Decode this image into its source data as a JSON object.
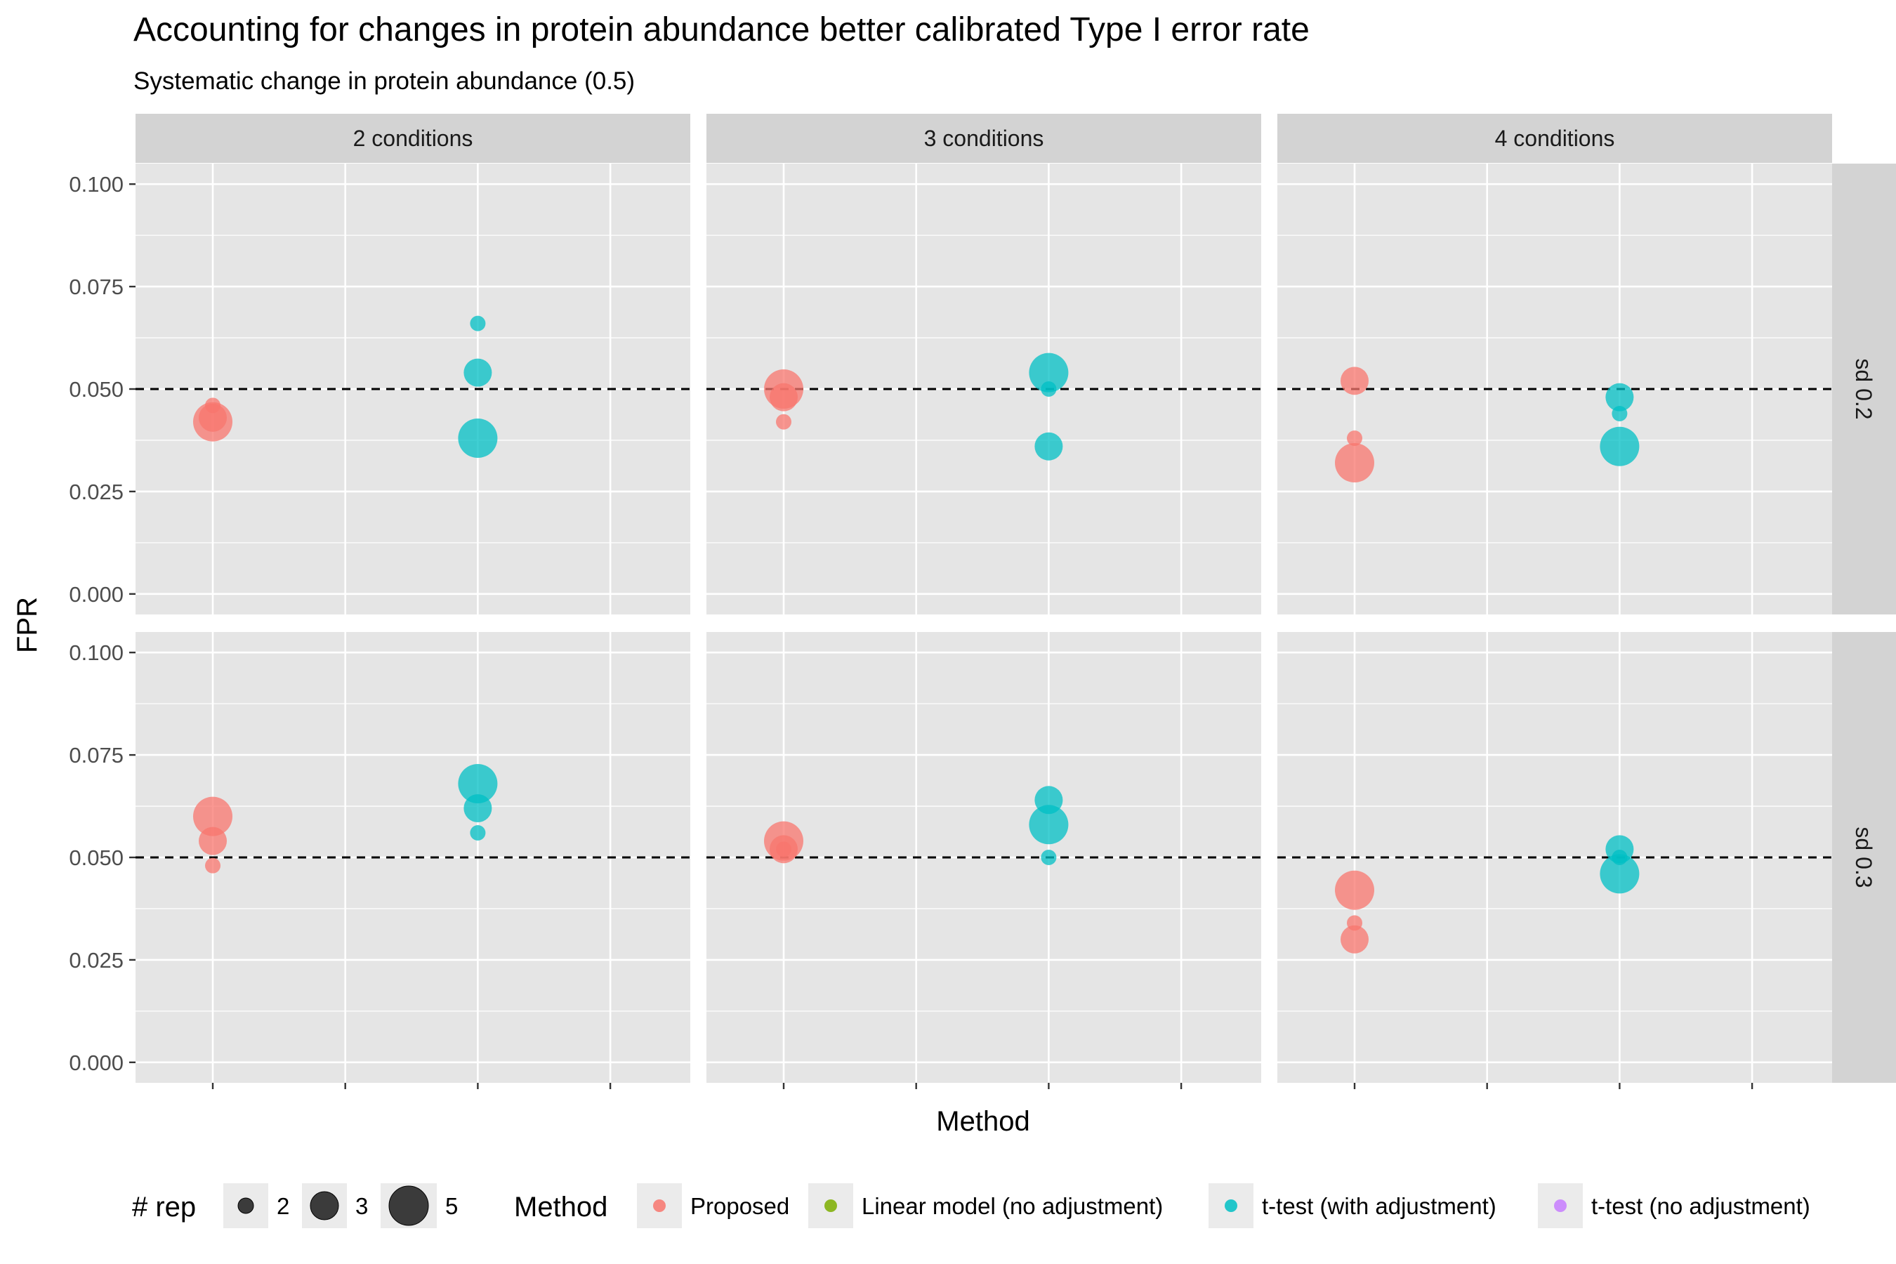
{
  "chart_data": {
    "type": "scatter",
    "title": "Accounting for changes in protein abundance better calibrated Type I error rate",
    "subtitle": "Systematic change in protein abundance (0.5)",
    "xlabel": "Method",
    "ylabel": "FPR",
    "ylim": [
      -0.005,
      0.105
    ],
    "yticks": [
      "0.000",
      "0.025",
      "0.050",
      "0.075",
      "0.100"
    ],
    "ytick_values": [
      0,
      0.025,
      0.05,
      0.075,
      0.1
    ],
    "methods": [
      "Proposed",
      "Linear model (no adjustment)",
      "t-test (with adjustment)",
      "t-test (no adjustment)"
    ],
    "reference_line": 0.05,
    "grid": true,
    "columns": [
      "2 conditions",
      "3 conditions",
      "4 conditions"
    ],
    "rows": [
      "sd 0.2",
      "sd 0.3"
    ],
    "colors": {
      "Proposed": "#F8766D",
      "Linear model (no adjustment)": "#7CAE00",
      "t-test (with adjustment)": "#00BFC4",
      "t-test (no adjustment)": "#C77CFF"
    },
    "panel_background": "#E5E5E5",
    "strip_background": "#D3D3D3",
    "size_legend": {
      "title": "# rep",
      "values": [
        2,
        3,
        5
      ]
    },
    "color_legend": {
      "title": "Method",
      "position": "bottom"
    },
    "panels": [
      {
        "row": "sd 0.2",
        "column": "2 conditions",
        "points": [
          {
            "method": "Proposed",
            "rep": 2,
            "fpr": 0.046
          },
          {
            "method": "Proposed",
            "rep": 3,
            "fpr": 0.043
          },
          {
            "method": "Proposed",
            "rep": 5,
            "fpr": 0.042
          },
          {
            "method": "t-test (with adjustment)",
            "rep": 2,
            "fpr": 0.066
          },
          {
            "method": "t-test (with adjustment)",
            "rep": 3,
            "fpr": 0.054
          },
          {
            "method": "t-test (with adjustment)",
            "rep": 5,
            "fpr": 0.038
          }
        ]
      },
      {
        "row": "sd 0.2",
        "column": "3 conditions",
        "points": [
          {
            "method": "Proposed",
            "rep": 2,
            "fpr": 0.042
          },
          {
            "method": "Proposed",
            "rep": 3,
            "fpr": 0.048
          },
          {
            "method": "Proposed",
            "rep": 5,
            "fpr": 0.05
          },
          {
            "method": "t-test (with adjustment)",
            "rep": 2,
            "fpr": 0.05
          },
          {
            "method": "t-test (with adjustment)",
            "rep": 3,
            "fpr": 0.036
          },
          {
            "method": "t-test (with adjustment)",
            "rep": 5,
            "fpr": 0.054
          }
        ]
      },
      {
        "row": "sd 0.2",
        "column": "4 conditions",
        "points": [
          {
            "method": "Proposed",
            "rep": 2,
            "fpr": 0.038
          },
          {
            "method": "Proposed",
            "rep": 3,
            "fpr": 0.052
          },
          {
            "method": "Proposed",
            "rep": 5,
            "fpr": 0.032
          },
          {
            "method": "t-test (with adjustment)",
            "rep": 2,
            "fpr": 0.044
          },
          {
            "method": "t-test (with adjustment)",
            "rep": 3,
            "fpr": 0.048
          },
          {
            "method": "t-test (with adjustment)",
            "rep": 5,
            "fpr": 0.036
          }
        ]
      },
      {
        "row": "sd 0.3",
        "column": "2 conditions",
        "points": [
          {
            "method": "Proposed",
            "rep": 2,
            "fpr": 0.048
          },
          {
            "method": "Proposed",
            "rep": 3,
            "fpr": 0.054
          },
          {
            "method": "Proposed",
            "rep": 5,
            "fpr": 0.06
          },
          {
            "method": "t-test (with adjustment)",
            "rep": 2,
            "fpr": 0.056
          },
          {
            "method": "t-test (with adjustment)",
            "rep": 3,
            "fpr": 0.062
          },
          {
            "method": "t-test (with adjustment)",
            "rep": 5,
            "fpr": 0.068
          }
        ]
      },
      {
        "row": "sd 0.3",
        "column": "3 conditions",
        "points": [
          {
            "method": "Proposed",
            "rep": 2,
            "fpr": 0.052
          },
          {
            "method": "Proposed",
            "rep": 3,
            "fpr": 0.052
          },
          {
            "method": "Proposed",
            "rep": 5,
            "fpr": 0.054
          },
          {
            "method": "t-test (with adjustment)",
            "rep": 2,
            "fpr": 0.05
          },
          {
            "method": "t-test (with adjustment)",
            "rep": 3,
            "fpr": 0.064
          },
          {
            "method": "t-test (with adjustment)",
            "rep": 5,
            "fpr": 0.058
          }
        ]
      },
      {
        "row": "sd 0.3",
        "column": "4 conditions",
        "points": [
          {
            "method": "Proposed",
            "rep": 2,
            "fpr": 0.034
          },
          {
            "method": "Proposed",
            "rep": 3,
            "fpr": 0.03
          },
          {
            "method": "Proposed",
            "rep": 5,
            "fpr": 0.042
          },
          {
            "method": "t-test (with adjustment)",
            "rep": 2,
            "fpr": 0.05
          },
          {
            "method": "t-test (with adjustment)",
            "rep": 3,
            "fpr": 0.052
          },
          {
            "method": "t-test (with adjustment)",
            "rep": 5,
            "fpr": 0.046
          }
        ]
      }
    ]
  }
}
